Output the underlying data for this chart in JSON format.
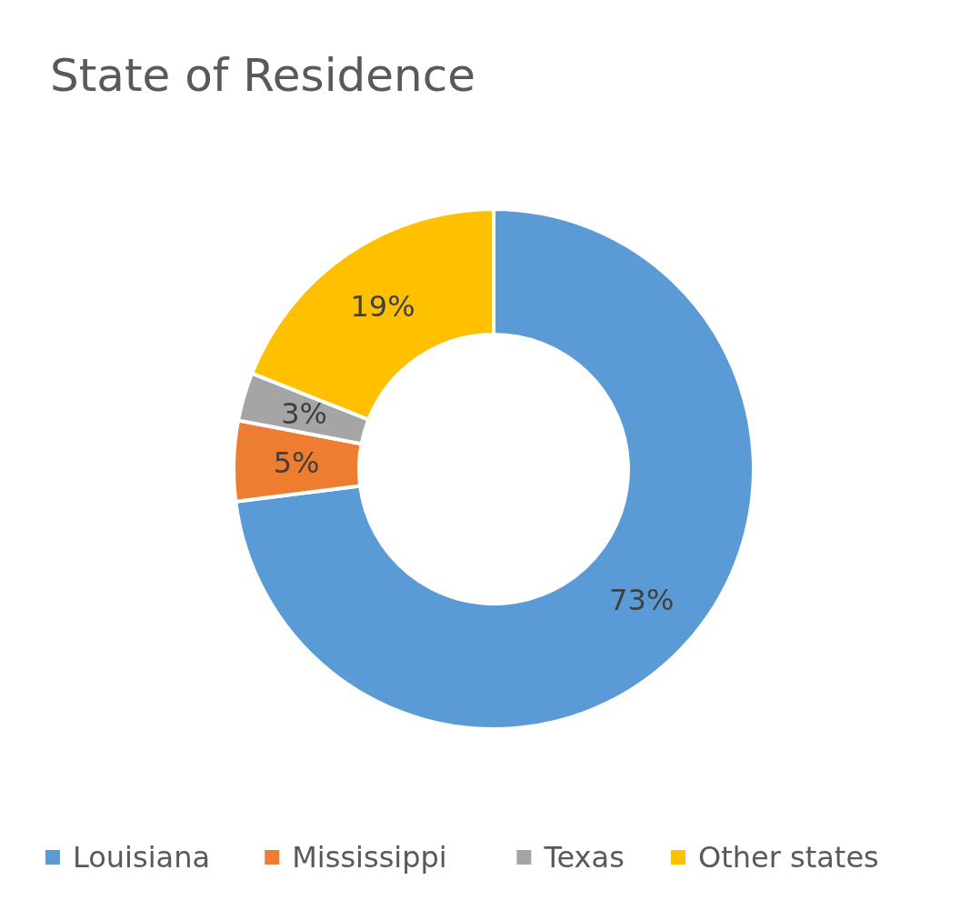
{
  "chart_data": {
    "type": "donut",
    "title": "State of Residence",
    "categories": [
      "Louisiana",
      "Mississippi",
      "Texas",
      "Other states"
    ],
    "values": [
      73,
      5,
      3,
      19
    ],
    "colors": [
      "#5b9bd5",
      "#ed7d31",
      "#a5a5a5",
      "#ffc000"
    ],
    "value_labels": [
      "73%",
      "5%",
      "3%",
      "19%"
    ],
    "legend": "bottom"
  }
}
